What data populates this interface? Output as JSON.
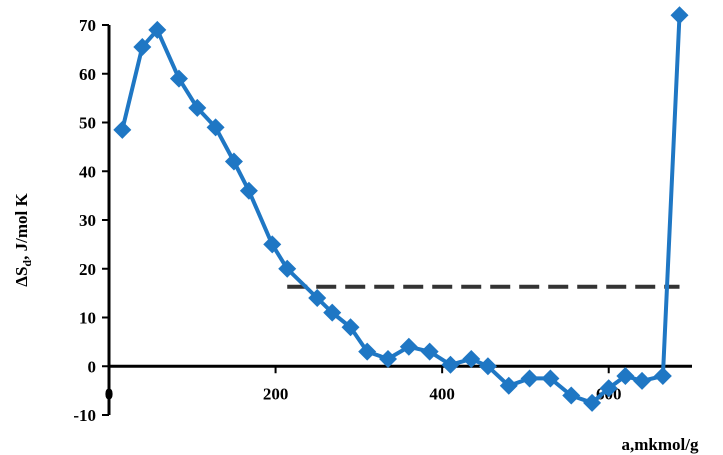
{
  "chart_data": {
    "type": "line",
    "title": "",
    "xlabel": "a,mkmol/g",
    "ylabel_main": "ΔS",
    "ylabel_sub": "d",
    "ylabel_rest": ", J/mol K",
    "xlim": [
      0,
      700
    ],
    "ylim": [
      -10,
      70
    ],
    "xticks": [
      0,
      200,
      400,
      600
    ],
    "yticks": [
      -10,
      0,
      10,
      20,
      30,
      40,
      50,
      60,
      70
    ],
    "grid": false,
    "legend": "none",
    "series": [
      {
        "color": "#1f77c4",
        "marker": "diamond",
        "x": [
          16,
          40,
          58,
          84,
          106,
          128,
          150,
          168,
          196,
          214,
          250,
          268,
          290,
          310,
          335,
          360,
          385,
          410,
          435,
          455,
          480,
          505,
          530,
          555,
          580,
          600,
          620,
          640,
          665,
          685
        ],
        "y": [
          48.5,
          65.5,
          69,
          59,
          53,
          49,
          42,
          36,
          25,
          20,
          14,
          11,
          8,
          3,
          1.5,
          4,
          3,
          0.3,
          1.5,
          0,
          -4,
          -2.5,
          -2.5,
          -6,
          -7.5,
          -4.5,
          -2,
          -3,
          -2,
          72
        ]
      }
    ],
    "reference_line": {
      "y": 16.3,
      "x_start": 214,
      "x_end": 685,
      "color": "#333333",
      "style": "dashed"
    }
  }
}
